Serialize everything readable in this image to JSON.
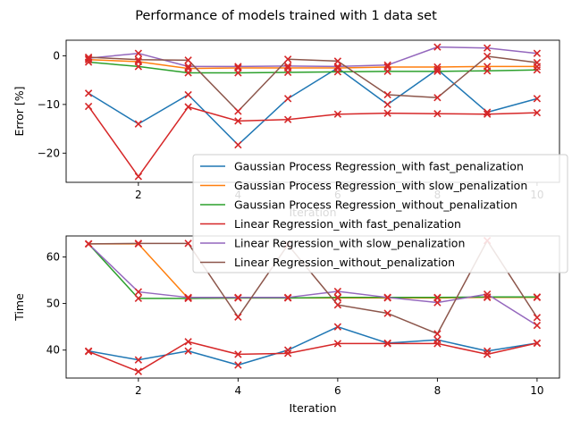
{
  "chart_data": {
    "type": "line",
    "title": "Performance of models trained with 1 data set",
    "x": [
      1,
      2,
      3,
      4,
      5,
      6,
      7,
      8,
      9,
      10
    ],
    "series_colors": [
      "#1f77b4",
      "#ff7f0e",
      "#2ca02c",
      "#d62728",
      "#9467bd",
      "#8c564b"
    ],
    "marker": "x",
    "marker_color": "#d62728",
    "grid": false,
    "legend_placement": "overlapping-both-panels-right",
    "legend": [
      "Gaussian Process Regression_with fast_penalization",
      "Gaussian Process Regression_with slow_penalization",
      "Gaussian Process Regression_without_penalization",
      "Linear Regression_with fast_penalization",
      "Linear Regression_with slow_penalization",
      "Linear Regression_without_penalization"
    ],
    "panels": [
      {
        "ylabel": "Error [%]",
        "xlabel": "Iteration",
        "xlim": [
          0.55,
          10.45
        ],
        "ylim": [
          -26,
          3.2
        ],
        "xticks": [
          2,
          4,
          6,
          8,
          10
        ],
        "yticks": [
          0,
          -10,
          -20
        ],
        "ytick_labels": [
          "0",
          "−10",
          "−20"
        ],
        "series": [
          {
            "name": "Gaussian Process Regression_with fast_penalization",
            "values": [
              -7.7,
              -14,
              -8,
              -18.3,
              -8.8,
              -2.5,
              -10,
              -2.8,
              -11.6,
              -8.8
            ]
          },
          {
            "name": "Gaussian Process Regression_with slow_penalization",
            "values": [
              -0.8,
              -1.2,
              -2.6,
              -2.5,
              -2.5,
              -2.5,
              -2.3,
              -2.3,
              -2.2,
              -2.2
            ]
          },
          {
            "name": "Gaussian Process Regression_without_penalization",
            "values": [
              -1.3,
              -2.2,
              -3.5,
              -3.5,
              -3.4,
              -3.3,
              -3.2,
              -3.2,
              -3.1,
              -2.9
            ]
          },
          {
            "name": "Linear Regression_with fast_penalization",
            "values": [
              -10.4,
              -24.8,
              -10.5,
              -13.4,
              -13.1,
              -12,
              -11.8,
              -11.9,
              -12,
              -11.7
            ]
          },
          {
            "name": "Linear Regression_with slow_penalization",
            "values": [
              -0.5,
              0.5,
              -2.2,
              -2.2,
              -2.1,
              -2.2,
              -1.9,
              1.8,
              1.6,
              0.5
            ]
          },
          {
            "name": "Linear Regression_without_penalization",
            "values": [
              -0.3,
              -0.8,
              -0.9,
              -11.4,
              -0.7,
              -1.1,
              -8,
              -8.6,
              -0.1,
              -1.4
            ]
          }
        ]
      },
      {
        "ylabel": "Time",
        "xlabel": "Iteration",
        "xlim": [
          0.55,
          10.45
        ],
        "ylim": [
          34,
          64.5
        ],
        "xticks": [
          2,
          4,
          6,
          8,
          10
        ],
        "yticks": [
          40,
          50,
          60
        ],
        "ytick_labels": [
          "40",
          "50",
          "60"
        ],
        "series": [
          {
            "name": "Gaussian Process Regression_with fast_penalization",
            "values": [
              39.8,
              37.9,
              39.8,
              36.8,
              40,
              45,
              41.5,
              42.2,
              39.8,
              41.5
            ]
          },
          {
            "name": "Gaussian Process Regression_with slow_penalization",
            "values": [
              62.8,
              62.8,
              51.1,
              51.2,
              51.2,
              51.2,
              51.2,
              51.2,
              51.3,
              51.3
            ]
          },
          {
            "name": "Gaussian Process Regression_without_penalization",
            "values": [
              62.8,
              51.1,
              51.1,
              51.2,
              51.2,
              51.3,
              51.3,
              51.3,
              51.4,
              51.4
            ]
          },
          {
            "name": "Linear Regression_with fast_penalization",
            "values": [
              39.7,
              35.4,
              41.8,
              39.1,
              39.3,
              41.4,
              41.4,
              41.4,
              39.1,
              41.5
            ]
          },
          {
            "name": "Linear Regression_with slow_penalization",
            "values": [
              62.8,
              52.5,
              51.3,
              51.3,
              51.3,
              52.6,
              51.3,
              50.2,
              52,
              45.3
            ]
          },
          {
            "name": "Linear Regression_without_penalization",
            "values": [
              62.8,
              62.9,
              62.9,
              47.1,
              62.6,
              49.7,
              47.9,
              43.5,
              63.5,
              47
            ]
          }
        ]
      }
    ]
  }
}
